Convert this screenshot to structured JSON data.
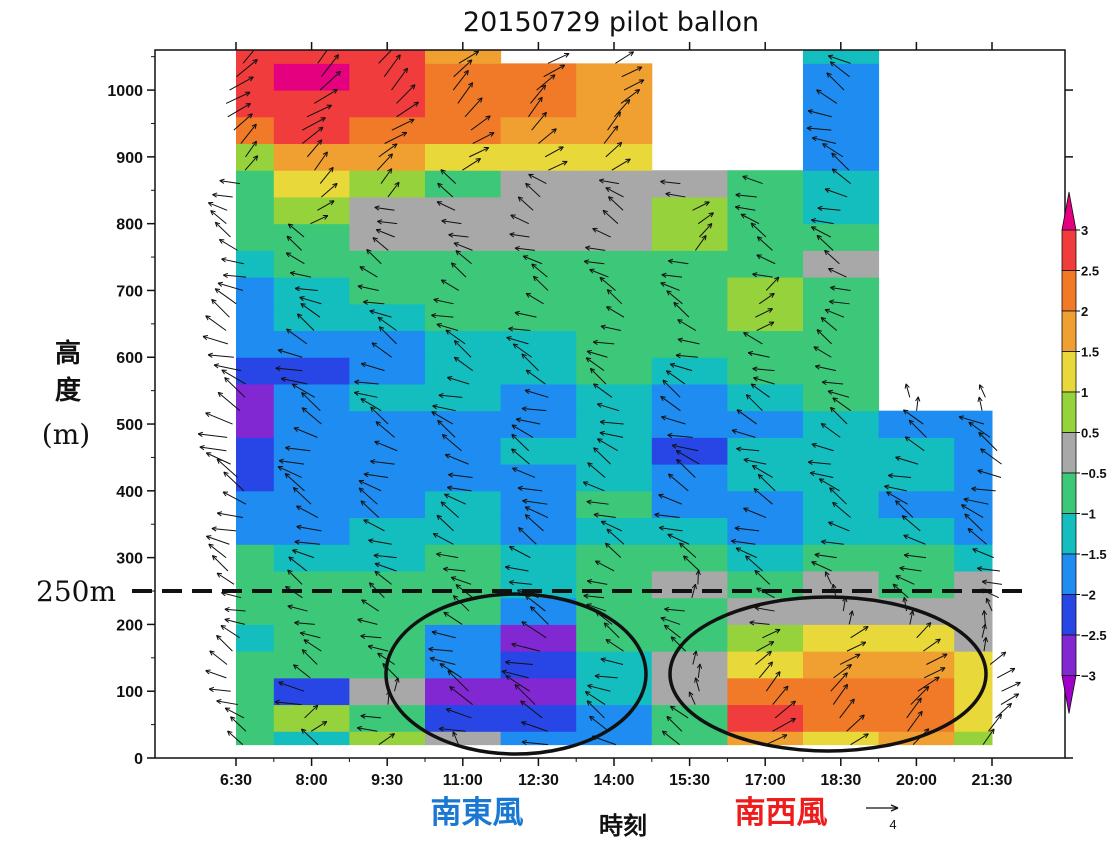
{
  "chart_data": {
    "type": "heatmap",
    "title": "20150729 pilot ballon",
    "ylabel": "高度",
    "yunit": "(m)",
    "xlabel": "時刻",
    "x_categories": [
      "6:30",
      "8:00",
      "9:30",
      "11:00",
      "12:30",
      "14:00",
      "15:30",
      "17:00",
      "18:30",
      "20:00",
      "21:30"
    ],
    "ylim": [
      0,
      1060
    ],
    "yticks": [
      0,
      100,
      200,
      300,
      400,
      500,
      600,
      700,
      800,
      900,
      1000
    ],
    "ytick_labels": [
      "0",
      "100",
      "200",
      "300",
      "400",
      "500",
      "600",
      "700",
      "800",
      "900",
      "1000"
    ],
    "colorbar": {
      "levels": [
        "3",
        "2.5",
        "2",
        "1.5",
        "1",
        "0.5",
        "−0.5",
        "−1",
        "−1.5",
        "−2",
        "−2.5",
        "−3"
      ],
      "colors": [
        "#e4007f",
        "#f03c3c",
        "#f07a28",
        "#f0a030",
        "#e8d83a",
        "#96d23c",
        "#a8a8a8",
        "#3cc878",
        "#14bebe",
        "#1e8cf0",
        "#2846e6",
        "#8228d2",
        "#a000c8"
      ]
    },
    "grid": false,
    "reference_line": {
      "value": 250,
      "label": "250m"
    },
    "annotations": [
      {
        "text": "南東風",
        "color": "#1a78d2"
      },
      {
        "text": "南西風",
        "color": "#ee1c1c"
      }
    ],
    "reference_vector": {
      "value": "4"
    },
    "profiles_height_top": [
      1060,
      1060,
      1060,
      1060,
      1040,
      1040,
      870,
      870,
      1060,
      540,
      540
    ],
    "field_levels": [
      20,
      60,
      100,
      140,
      180,
      220,
      260,
      300,
      340,
      380,
      420,
      460,
      500,
      540,
      580,
      620,
      660,
      700,
      740,
      780,
      820,
      860,
      900,
      940,
      980,
      1020,
      1060
    ],
    "field_values": [
      [
        -0.6,
        -1.2,
        0.8,
        0.4,
        -2.0,
        -1.8,
        -1.0,
        1.8,
        1.2,
        1.6,
        0.8
      ],
      [
        -0.8,
        0.6,
        -0.6,
        -2.2,
        -2.4,
        -1.6,
        -0.8,
        2.6,
        2.0,
        2.2,
        1.4
      ],
      [
        -0.9,
        -2.2,
        -0.4,
        -2.8,
        -2.6,
        -1.4,
        0.2,
        2.0,
        2.2,
        2.4,
        1.2
      ],
      [
        -1.0,
        -0.8,
        -0.6,
        -2.0,
        -2.4,
        -1.2,
        -0.4,
        1.2,
        1.6,
        1.8,
        1.0
      ],
      [
        -1.1,
        -0.7,
        -0.7,
        -1.6,
        -2.8,
        -0.8,
        -0.6,
        0.9,
        1.2,
        1.2,
        -0.4
      ],
      [
        -0.7,
        -0.6,
        -0.6,
        -1.0,
        -1.8,
        -0.6,
        -0.6,
        -0.5,
        0.2,
        -0.4,
        -0.4
      ],
      [
        -0.6,
        -0.6,
        -0.8,
        -0.8,
        -1.2,
        -0.6,
        -0.4,
        -0.6,
        -0.4,
        -0.6,
        -0.5
      ],
      [
        -1.0,
        -1.2,
        -1.2,
        -1.0,
        -1.4,
        -0.8,
        -1.0,
        -1.2,
        -1.0,
        -1.0,
        -1.2
      ],
      [
        -1.6,
        -1.8,
        -1.4,
        -1.2,
        -1.6,
        -1.2,
        -1.4,
        -1.6,
        -1.2,
        -1.4,
        -1.6
      ],
      [
        -2.0,
        -1.6,
        -1.6,
        -1.4,
        -1.8,
        -1.0,
        -1.8,
        -1.6,
        -1.4,
        -1.6,
        -1.8
      ],
      [
        -2.4,
        -2.0,
        -1.6,
        -1.6,
        -1.6,
        -1.2,
        -2.0,
        -1.4,
        -1.4,
        -1.2,
        -1.6
      ],
      [
        -2.2,
        -1.8,
        -1.6,
        -1.8,
        -1.4,
        -1.4,
        -2.2,
        -1.2,
        -1.2,
        -1.4,
        -2.0
      ],
      [
        -2.8,
        -1.8,
        -1.6,
        -1.6,
        -1.6,
        -1.4,
        -1.8,
        -1.6,
        -1.4,
        -1.6,
        -2.0
      ],
      [
        -2.6,
        -2.0,
        -1.4,
        -1.4,
        -1.6,
        -1.2,
        -1.6,
        -1.2,
        -1.0,
        0,
        0
      ],
      [
        -2.4,
        -2.2,
        -1.6,
        -1.2,
        -1.4,
        -1.0,
        -1.2,
        -1.0,
        -0.8,
        0,
        0
      ],
      [
        -2.0,
        -1.8,
        -1.6,
        -1.4,
        -1.2,
        -0.8,
        -1.0,
        -1.0,
        -0.6,
        0,
        0
      ],
      [
        -1.8,
        -1.4,
        -1.2,
        -1.0,
        -1.0,
        -0.6,
        -0.8,
        0.8,
        -0.6,
        0,
        0
      ],
      [
        -2.0,
        -1.2,
        -0.8,
        -0.6,
        -0.6,
        -0.6,
        -0.6,
        0.6,
        -0.6,
        0,
        0
      ],
      [
        -1.2,
        -0.8,
        -0.6,
        -0.6,
        -0.6,
        -0.6,
        -0.6,
        -0.6,
        -0.5,
        0,
        0
      ],
      [
        -0.8,
        -0.6,
        -0.5,
        -0.5,
        -0.5,
        -0.5,
        0.6,
        -0.6,
        -1.0,
        0,
        0
      ],
      [
        -0.6,
        0.8,
        -0.5,
        -0.5,
        -0.5,
        -0.5,
        0.7,
        -0.6,
        -1.2,
        0,
        0
      ],
      [
        -0.6,
        1.2,
        0.6,
        -0.6,
        -0.5,
        -0.5,
        -0.5,
        -0.8,
        -1.4,
        0,
        0
      ],
      [
        0.8,
        1.6,
        1.6,
        1.4,
        1.2,
        1.4,
        0,
        0,
        -1.6,
        0,
        0
      ],
      [
        2.2,
        2.6,
        2.2,
        2.0,
        1.8,
        1.6,
        0,
        0,
        -1.6,
        0,
        0
      ],
      [
        2.6,
        2.8,
        2.6,
        2.4,
        2.0,
        1.8,
        0,
        0,
        -1.6,
        0,
        0
      ],
      [
        2.8,
        3.0,
        2.8,
        2.2,
        2.0,
        1.6,
        0,
        0,
        -1.6,
        0,
        0
      ],
      [
        2.6,
        2.8,
        2.6,
        1.8,
        1.8,
        1.4,
        0,
        0,
        -1.4,
        0,
        0
      ]
    ]
  }
}
